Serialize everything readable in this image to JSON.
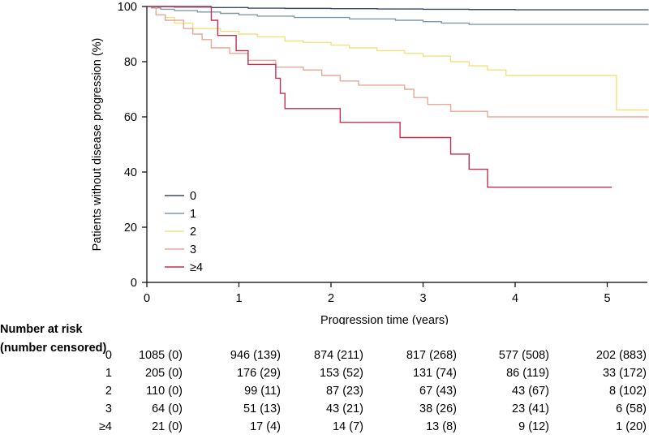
{
  "chart_data": {
    "type": "line",
    "step": true,
    "xlabel": "Progression time (years)",
    "ylabel": "Patients without disease progression (%)",
    "xlim": [
      0,
      5.45
    ],
    "ylim": [
      0,
      100
    ],
    "xticks": [
      "0",
      "1",
      "2",
      "3",
      "4",
      "5"
    ],
    "yticks": [
      "0",
      "20",
      "40",
      "60",
      "80",
      "100"
    ],
    "legend_position": "lower-left",
    "series": [
      {
        "name": "0",
        "color": "#3b4a63",
        "points": [
          [
            0,
            100
          ],
          [
            0.3,
            99.8
          ],
          [
            0.7,
            99.6
          ],
          [
            1.1,
            99.4
          ],
          [
            1.5,
            99.3
          ],
          [
            2.0,
            99.2
          ],
          [
            2.5,
            99.1
          ],
          [
            3.0,
            99.0
          ],
          [
            3.5,
            98.9
          ],
          [
            4.0,
            98.8
          ],
          [
            5.45,
            98.8
          ]
        ]
      },
      {
        "name": "1",
        "color": "#7f9aaa",
        "points": [
          [
            0,
            100
          ],
          [
            0.05,
            99.5
          ],
          [
            0.15,
            99
          ],
          [
            0.3,
            98.5
          ],
          [
            0.55,
            98
          ],
          [
            0.8,
            97.5
          ],
          [
            1.0,
            97
          ],
          [
            1.2,
            96.5
          ],
          [
            1.6,
            96
          ],
          [
            2.2,
            95.5
          ],
          [
            2.7,
            95
          ],
          [
            3.0,
            94.5
          ],
          [
            3.2,
            94
          ],
          [
            3.5,
            93.5
          ],
          [
            4.0,
            93.5
          ],
          [
            5.45,
            93.5
          ]
        ]
      },
      {
        "name": "2",
        "color": "#f2e180",
        "points": [
          [
            0,
            100
          ],
          [
            0.1,
            97
          ],
          [
            0.2,
            96
          ],
          [
            0.3,
            94
          ],
          [
            0.5,
            92
          ],
          [
            0.8,
            91
          ],
          [
            1.0,
            90
          ],
          [
            1.2,
            89
          ],
          [
            1.5,
            87.5
          ],
          [
            1.7,
            87
          ],
          [
            2.0,
            86
          ],
          [
            2.2,
            85
          ],
          [
            2.5,
            84
          ],
          [
            2.8,
            83
          ],
          [
            3.0,
            82
          ],
          [
            3.3,
            80
          ],
          [
            3.5,
            78.5
          ],
          [
            3.7,
            77
          ],
          [
            3.9,
            75
          ],
          [
            5.1,
            75
          ],
          [
            5.1,
            62.5
          ],
          [
            5.45,
            62.5
          ]
        ]
      },
      {
        "name": "3",
        "color": "#e8a898",
        "points": [
          [
            0,
            100
          ],
          [
            0.1,
            97
          ],
          [
            0.2,
            95
          ],
          [
            0.4,
            92
          ],
          [
            0.5,
            90
          ],
          [
            0.6,
            88
          ],
          [
            0.7,
            85
          ],
          [
            0.9,
            83
          ],
          [
            1.1,
            80.5
          ],
          [
            1.4,
            78
          ],
          [
            1.7,
            77
          ],
          [
            1.9,
            75
          ],
          [
            2.1,
            73
          ],
          [
            2.3,
            71.5
          ],
          [
            2.8,
            70
          ],
          [
            2.9,
            67
          ],
          [
            3.05,
            64.5
          ],
          [
            3.3,
            62
          ],
          [
            3.7,
            60
          ],
          [
            5.45,
            60
          ]
        ]
      },
      {
        "name": "≥4",
        "color": "#c0304f",
        "points": [
          [
            0,
            100
          ],
          [
            0.7,
            100
          ],
          [
            0.7,
            95
          ],
          [
            0.77,
            89.5
          ],
          [
            0.97,
            84
          ],
          [
            1.1,
            79
          ],
          [
            1.4,
            74
          ],
          [
            1.45,
            68.5
          ],
          [
            1.5,
            63
          ],
          [
            2.1,
            58
          ],
          [
            2.75,
            52.5
          ],
          [
            3.3,
            46.5
          ],
          [
            3.5,
            41
          ],
          [
            3.7,
            34.5
          ],
          [
            5.05,
            34.5
          ]
        ]
      }
    ]
  },
  "risk_table": {
    "title_line1": "Number at risk",
    "title_line2": "(number censored)",
    "rows": [
      {
        "label": "0",
        "cells": [
          "1085 (0)",
          "946 (139)",
          "874 (211)",
          "817 (268)",
          "577 (508)",
          "202 (883)"
        ]
      },
      {
        "label": "1",
        "cells": [
          "205 (0)",
          "176 (29)",
          "153 (52)",
          "131 (74)",
          "86 (119)",
          "33 (172)"
        ]
      },
      {
        "label": "2",
        "cells": [
          "110 (0)",
          "99 (11)",
          "87 (23)",
          "67 (43)",
          "43 (67)",
          "8 (102)"
        ]
      },
      {
        "label": "3",
        "cells": [
          "64 (0)",
          "51 (13)",
          "43 (21)",
          "38 (26)",
          "23 (41)",
          "6 (58)"
        ]
      },
      {
        "label": "≥4",
        "cells": [
          "21 (0)",
          "17 (4)",
          "14 (7)",
          "13 (8)",
          "9 (12)",
          "1 (20)"
        ]
      }
    ]
  }
}
